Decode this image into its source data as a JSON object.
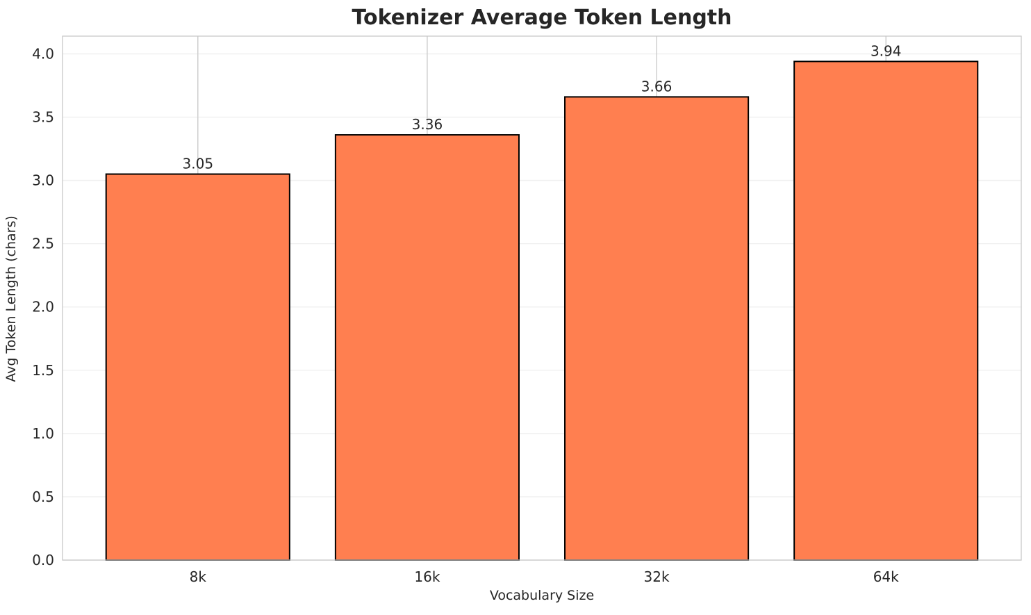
{
  "chart": {
    "title": "Tokenizer Average Token Length",
    "xlabel": "Vocabulary Size",
    "ylabel": "Avg Token Length (chars)"
  },
  "chart_data": {
    "type": "bar",
    "categories": [
      "8k",
      "16k",
      "32k",
      "64k"
    ],
    "values": [
      3.05,
      3.36,
      3.66,
      3.94
    ],
    "value_labels": [
      "3.05",
      "3.36",
      "3.66",
      "3.94"
    ],
    "title": "Tokenizer Average Token Length",
    "xlabel": "Vocabulary Size",
    "ylabel": "Avg Token Length (chars)",
    "ylim": [
      0.0,
      4.14
    ],
    "yticks": [
      0.0,
      0.5,
      1.0,
      1.5,
      2.0,
      2.5,
      3.0,
      3.5,
      4.0
    ],
    "ytick_labels": [
      "0.0",
      "0.5",
      "1.0",
      "1.5",
      "2.0",
      "2.5",
      "3.0",
      "3.5",
      "4.0"
    ],
    "grid": true,
    "legend": "none",
    "colors": {
      "bar_fill": "#FF7F50",
      "bar_edge": "#000000",
      "text": "#262626",
      "spine": "#c8c8c8",
      "grid_horizontal": "#f0f0f0",
      "grid_vertical": "#cccccc",
      "background": "#ffffff"
    }
  }
}
